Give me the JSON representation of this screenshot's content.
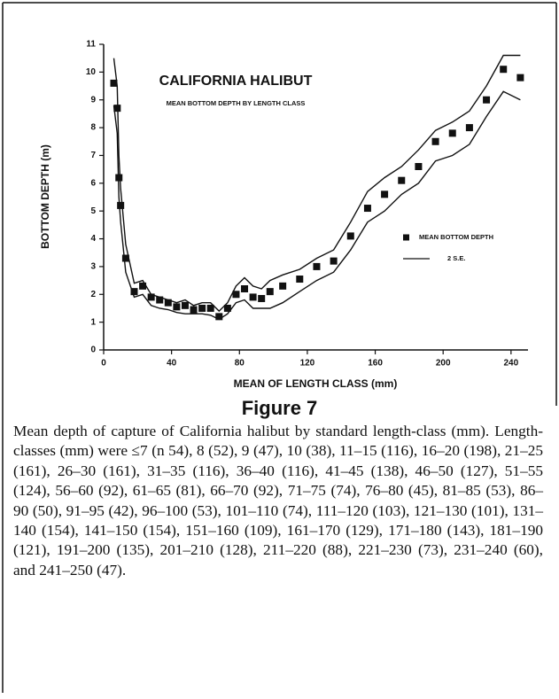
{
  "chart_data": {
    "type": "scatter",
    "title": "CALIFORNIA HALIBUT",
    "subtitle": "MEAN BOTTOM DEPTH BY LENGTH CLASS",
    "x_label": "MEAN OF LENGTH CLASS (mm)",
    "y_label": "BOTTOM DEPTH (m)",
    "x": [
      6,
      8,
      9,
      10,
      13,
      18,
      23,
      28,
      33,
      38,
      43,
      48,
      53,
      58,
      63,
      68,
      73,
      78,
      83,
      88,
      93,
      98,
      105.5,
      115.5,
      125.5,
      135.5,
      145.5,
      155.5,
      165.5,
      175.5,
      185.5,
      195.5,
      205.5,
      215.5,
      225.5,
      235.5,
      245.5
    ],
    "series": [
      {
        "name": "MEAN BOTTOM DEPTH",
        "color": "#111111",
        "values": [
          9.6,
          8.7,
          6.2,
          5.2,
          3.3,
          2.1,
          2.3,
          1.9,
          1.8,
          1.7,
          1.55,
          1.6,
          1.45,
          1.5,
          1.5,
          1.2,
          1.5,
          2.0,
          2.2,
          1.9,
          1.85,
          2.1,
          2.3,
          2.55,
          3.0,
          3.2,
          4.1,
          5.1,
          5.6,
          6.1,
          6.6,
          7.5,
          7.8,
          8.0,
          9.0,
          10.1,
          9.8
        ]
      },
      {
        "name": "2 S.E.",
        "color": "#111111",
        "upper": [
          10.5,
          9.5,
          7.0,
          5.8,
          3.8,
          2.4,
          2.5,
          2.0,
          1.9,
          1.8,
          1.7,
          1.8,
          1.6,
          1.7,
          1.7,
          1.4,
          1.7,
          2.3,
          2.6,
          2.3,
          2.2,
          2.5,
          2.7,
          2.9,
          3.3,
          3.6,
          4.6,
          5.7,
          6.2,
          6.6,
          7.2,
          7.9,
          8.2,
          8.6,
          9.5,
          10.6,
          10.6
        ],
        "lower": [
          8.8,
          7.8,
          5.5,
          4.6,
          2.8,
          1.9,
          2.0,
          1.6,
          1.5,
          1.45,
          1.35,
          1.3,
          1.3,
          1.3,
          1.25,
          1.1,
          1.3,
          1.7,
          1.8,
          1.5,
          1.5,
          1.5,
          1.7,
          2.1,
          2.5,
          2.8,
          3.6,
          4.6,
          5.0,
          5.6,
          6.0,
          6.8,
          7.0,
          7.4,
          8.4,
          9.3,
          9.0
        ]
      }
    ],
    "xlim": [
      0,
      250
    ],
    "xticks": [
      0,
      40,
      80,
      120,
      160,
      200,
      240
    ],
    "ylim": [
      0,
      11
    ],
    "yticks": [
      0,
      1,
      2,
      3,
      4,
      5,
      6,
      7,
      8,
      9,
      10,
      11
    ],
    "legend": "right"
  },
  "figure": {
    "label": "Figure 7",
    "caption": "Mean depth of capture of California halibut by standard length-class (mm). Length-classes (mm) were ≤7 (n 54), 8 (52), 9 (47), 10 (38), 11–15 (116), 16–20 (198), 21–25 (161), 26–30 (161), 31–35 (116), 36–40 (116), 41–45 (138), 46–50 (127), 51–55 (124), 56–60 (92), 61–65 (81), 66–70 (92), 71–75 (74), 76–80 (45), 81–85 (53), 86–90 (50), 91–95 (42), 96–100 (53), 101–110 (74), 111–120 (103), 121–130 (101), 131–140 (154), 141–150 (154), 151–160 (109), 161–170 (129), 171–180 (143), 181–190 (121), 191–200 (135), 201–210 (128), 211–220 (88), 221–230 (73), 231–240 (60), and 241–250 (47)."
  }
}
